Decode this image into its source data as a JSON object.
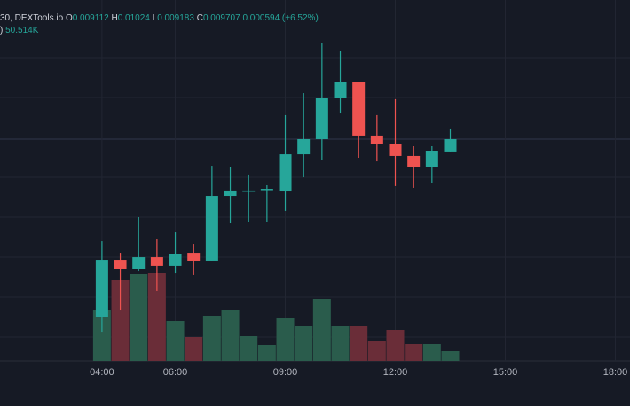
{
  "chart_data": {
    "type": "candlestick",
    "header": {
      "symbol": "30, DEXTools.io",
      "fields": [
        {
          "label": "O",
          "value": "0.009112"
        },
        {
          "label": "H",
          "value": "0.01024"
        },
        {
          "label": "L",
          "value": "0.009183"
        },
        {
          "label": "C",
          "value": "0.009707"
        }
      ],
      "change": "0.000594 (+6.52%)",
      "volume_prefix": ")",
      "volume": "50.514K"
    },
    "up_color": "#26a69a",
    "down_color": "#ef5350",
    "up_volume_color": "#2a5c4c",
    "down_volume_color": "#6a2d38",
    "xlim": [
      1.22,
      18.4
    ],
    "xticks": [
      {
        "value": 4,
        "label": "04:00"
      },
      {
        "value": 6,
        "label": "06:00"
      },
      {
        "value": 9,
        "label": "09:00"
      },
      {
        "value": 12,
        "label": "12:00"
      },
      {
        "value": 15,
        "label": "15:00"
      },
      {
        "value": 18,
        "label": "18:00"
      }
    ],
    "ylim": [
      0.008,
      0.0106
    ],
    "volume_lim": [
      0,
      200
    ],
    "candles": [
      {
        "x": 4,
        "open": 0.008313,
        "high": 0.008862,
        "low": 0.008204,
        "close": 0.008728,
        "volume": 57
      },
      {
        "x": 4.5,
        "open": 0.008728,
        "high": 0.008779,
        "low": 0.008364,
        "close": 0.008658,
        "volume": 91
      },
      {
        "x": 5,
        "open": 0.008658,
        "high": 0.009035,
        "low": 0.008645,
        "close": 0.008747,
        "volume": 98
      },
      {
        "x": 5.5,
        "open": 0.008747,
        "high": 0.008875,
        "low": 0.008505,
        "close": 0.008684,
        "volume": 99
      },
      {
        "x": 6,
        "open": 0.008684,
        "high": 0.008926,
        "low": 0.008632,
        "close": 0.008773,
        "volume": 45
      },
      {
        "x": 6.5,
        "open": 0.008779,
        "high": 0.008843,
        "low": 0.00862,
        "close": 0.008722,
        "volume": 27
      },
      {
        "x": 7,
        "open": 0.008722,
        "high": 0.009405,
        "low": 0.008722,
        "close": 0.009188,
        "volume": 51
      },
      {
        "x": 7.5,
        "open": 0.009188,
        "high": 0.009399,
        "low": 0.00899,
        "close": 0.009227,
        "volume": 57
      },
      {
        "x": 8,
        "open": 0.009227,
        "high": 0.009342,
        "low": 0.009003,
        "close": 0.009227,
        "volume": 28
      },
      {
        "x": 8.5,
        "open": 0.009233,
        "high": 0.009265,
        "low": 0.009003,
        "close": 0.009239,
        "volume": 18
      },
      {
        "x": 9,
        "open": 0.00922,
        "high": 0.00977,
        "low": 0.00908,
        "close": 0.009488,
        "volume": 48
      },
      {
        "x": 9.5,
        "open": 0.009488,
        "high": 0.009929,
        "low": 0.009322,
        "close": 0.009597,
        "volume": 39
      },
      {
        "x": 10,
        "open": 0.009597,
        "high": 0.010293,
        "low": 0.00945,
        "close": 0.009897,
        "volume": 70
      },
      {
        "x": 10.5,
        "open": 0.009897,
        "high": 0.010236,
        "low": 0.009782,
        "close": 0.010006,
        "volume": 39
      },
      {
        "x": 11,
        "open": 0.010006,
        "high": 0.010006,
        "low": 0.009463,
        "close": 0.009623,
        "volume": 39
      },
      {
        "x": 11.5,
        "open": 0.009623,
        "high": 0.00977,
        "low": 0.009437,
        "close": 0.009565,
        "volume": 22
      },
      {
        "x": 12,
        "open": 0.009565,
        "high": 0.009885,
        "low": 0.009259,
        "close": 0.009476,
        "volume": 35
      },
      {
        "x": 12.5,
        "open": 0.009476,
        "high": 0.009546,
        "low": 0.009246,
        "close": 0.009399,
        "volume": 19
      },
      {
        "x": 13,
        "open": 0.009399,
        "high": 0.009546,
        "low": 0.009278,
        "close": 0.009514,
        "volume": 19
      },
      {
        "x": 13.5,
        "open": 0.009508,
        "high": 0.009674,
        "low": 0.009508,
        "close": 0.009597,
        "volume": 11
      }
    ]
  }
}
